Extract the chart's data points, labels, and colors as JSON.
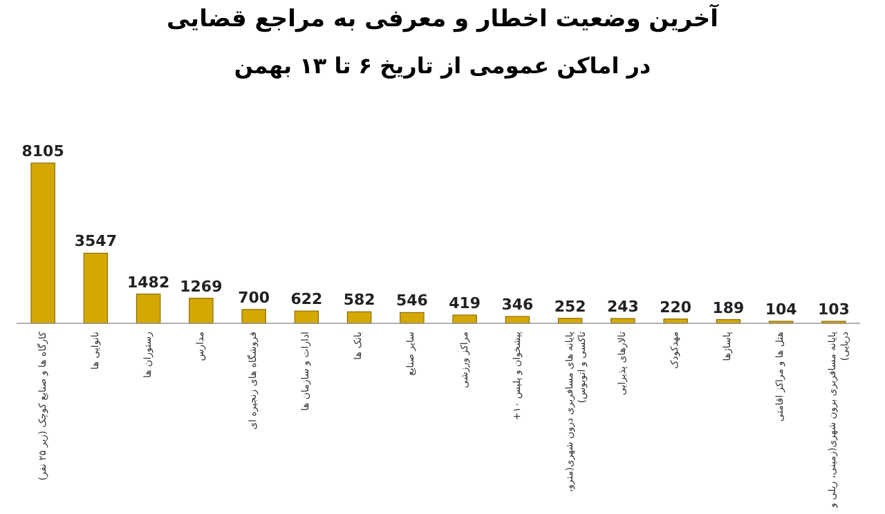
{
  "chart_data": {
    "type": "bar",
    "title": "آخرین وضعیت اخطار و معرفی به مراجع قضایی",
    "subtitle": "در اماکن عمومی از تاریخ ۶ تا ۱۳ بهمن",
    "categories": [
      "کارگاه ها و صنایع کوچک (زیر ۲۵ نفر)",
      "نانوایی ها",
      "رستوران ها",
      "مدارس",
      "فروشگاه های زنجیره ای",
      "ادارات و سازمان ها",
      "بانک ها",
      "سایر صنایع",
      "مراکز ورزشی",
      "پیشخوان و پلیس ۱۰+",
      "پایانه های مسافربری درون شهری(مترو، تاکسی و اتوبوس)",
      "تالارهای پذیرایی",
      "مهدکودک",
      "پاساژها",
      "هتل ها و مراکز اقامتی",
      "پایانه مسافربری برون شهری(زمینی، ریلی و دریایی)"
    ],
    "values": [
      8105,
      3547,
      1482,
      1269,
      700,
      622,
      582,
      546,
      419,
      346,
      252,
      243,
      220,
      189,
      104,
      103
    ],
    "color": "#d4a800",
    "data_labels": true
  }
}
